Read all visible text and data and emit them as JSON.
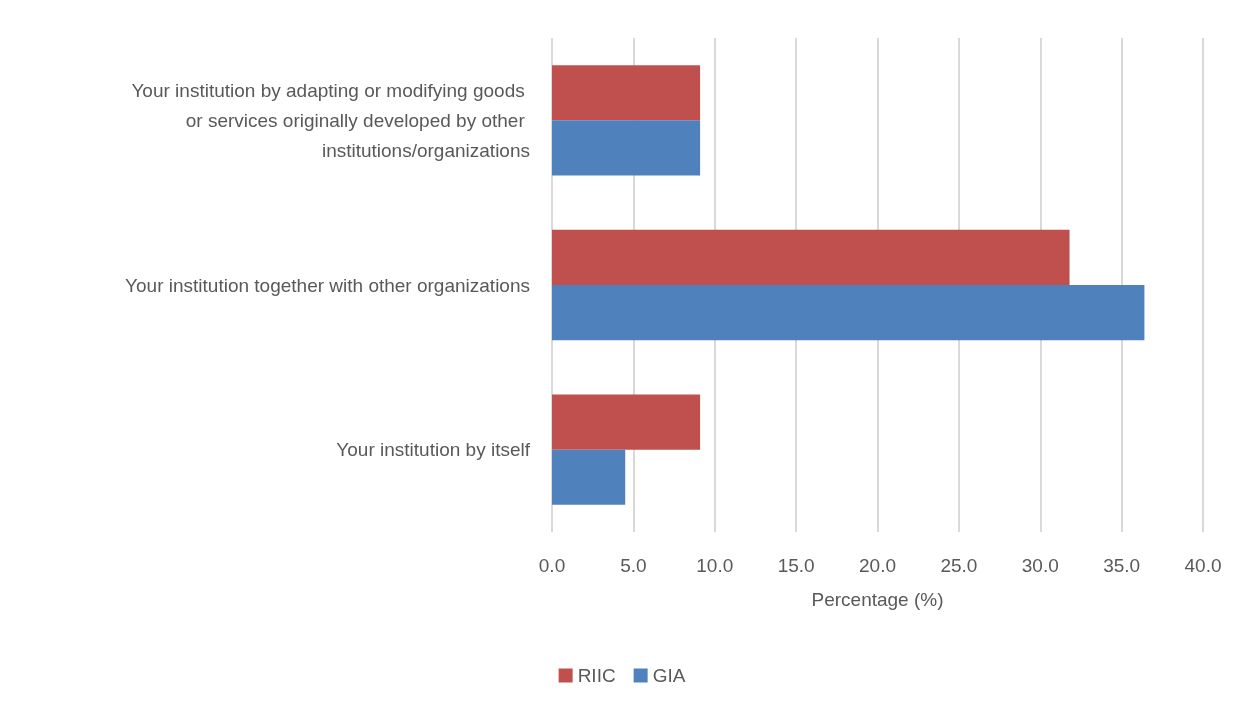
{
  "chart_data": {
    "type": "bar",
    "orientation": "horizontal",
    "categories": [
      "Your institution by adapting or modifying goods or services originally developed by other institutions/organizations",
      "Your institution together with other organizations",
      "Your institution by itself"
    ],
    "series": [
      {
        "name": "RIIC",
        "color": "#c0504d",
        "values": [
          9.1,
          31.8,
          9.1
        ]
      },
      {
        "name": "GIA",
        "color": "#4f81bd",
        "values": [
          9.1,
          36.4,
          4.5
        ]
      }
    ],
    "xlabel": "Percentage (%)",
    "xlim": [
      0,
      40
    ],
    "xticks": [
      {
        "value": 0,
        "label": "0.0"
      },
      {
        "value": 5,
        "label": "5.0"
      },
      {
        "value": 10,
        "label": "10.0"
      },
      {
        "value": 15,
        "label": "15.0"
      },
      {
        "value": 20,
        "label": "20.0"
      },
      {
        "value": 25,
        "label": "25.0"
      },
      {
        "value": 30,
        "label": "30.0"
      },
      {
        "value": 35,
        "label": "35.0"
      },
      {
        "value": 40,
        "label": "40.0"
      }
    ],
    "grid": "x",
    "legend": "bottom"
  }
}
